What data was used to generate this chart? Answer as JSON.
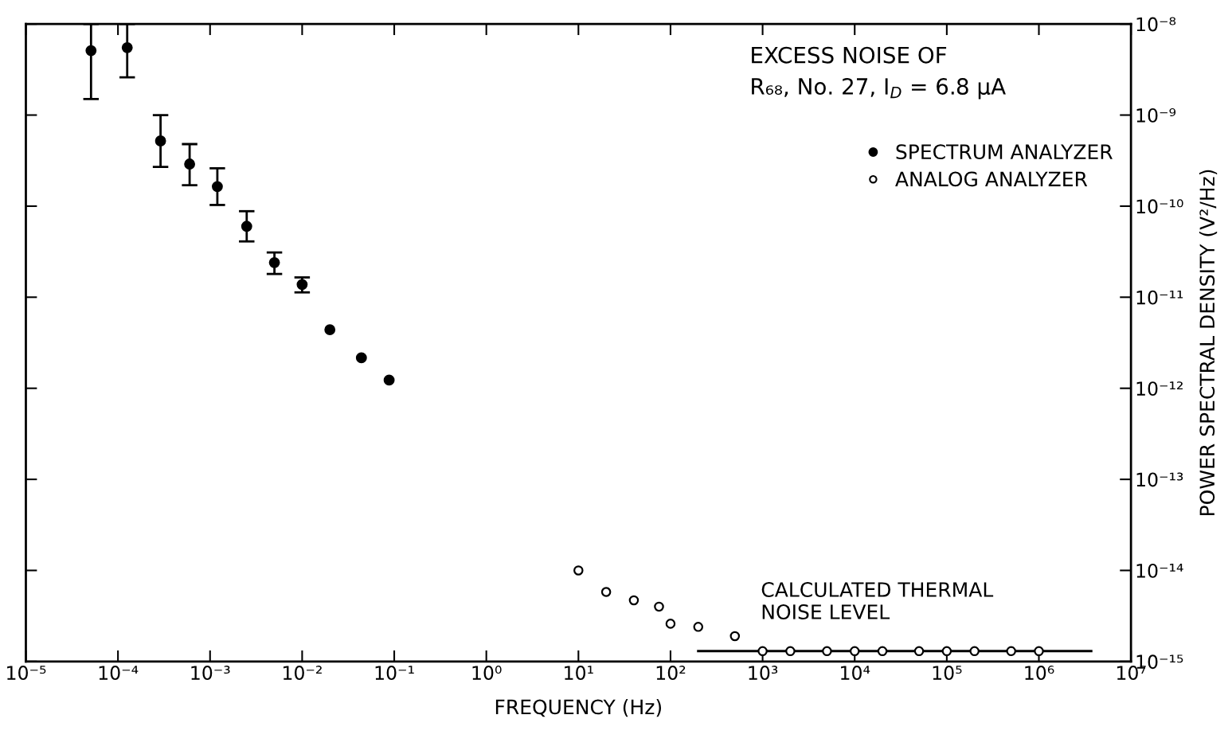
{
  "chart_data": {
    "type": "scatter",
    "title": "EXCESS NOISE OF\nR₆₈, No. 27, I$_{D}$ = 6.8 μA",
    "xlabel": "FREQUENCY (Hz)",
    "ylabel": "POWER SPECTRAL DENSITY (V²/Hz)",
    "log": "xy",
    "grid": false,
    "legend": "top right",
    "xlim": [
      1e-05,
      10000000.0
    ],
    "ylim": [
      1e-15,
      1e-08
    ],
    "xticks": [
      {
        "value": 1e-05,
        "label": "10⁻⁵"
      },
      {
        "value": 0.0001,
        "label": "10⁻⁴"
      },
      {
        "value": 0.001,
        "label": "10⁻³"
      },
      {
        "value": 0.01,
        "label": "10⁻²"
      },
      {
        "value": 0.1,
        "label": "10⁻¹"
      },
      {
        "value": 1,
        "label": "10⁰"
      },
      {
        "value": 10,
        "label": "10¹"
      },
      {
        "value": 100,
        "label": "10²"
      },
      {
        "value": 1000,
        "label": "10³"
      },
      {
        "value": 10000.0,
        "label": "10⁴"
      },
      {
        "value": 100000.0,
        "label": "10⁵"
      },
      {
        "value": 1000000.0,
        "label": "10⁶"
      },
      {
        "value": 10000000.0,
        "label": "10⁷"
      }
    ],
    "yticks": [
      {
        "value": 1e-15,
        "label": "10⁻¹⁵"
      },
      {
        "value": 1e-14,
        "label": "10⁻¹⁴"
      },
      {
        "value": 1e-13,
        "label": "10⁻¹³"
      },
      {
        "value": 1e-12,
        "label": "10⁻¹²"
      },
      {
        "value": 1e-11,
        "label": "10⁻¹¹"
      },
      {
        "value": 1e-10,
        "label": "10⁻¹⁰"
      },
      {
        "value": 1e-09,
        "label": "10⁻⁹"
      },
      {
        "value": 1e-08,
        "label": "10⁻⁸"
      }
    ],
    "series": [
      {
        "name": "SPECTRUM ANALYZER",
        "marker": "circle",
        "color": "#000000",
        "x": [
          5.1e-05,
          0.000126,
          0.00029,
          0.0006,
          0.0012,
          0.0025,
          0.005,
          0.01,
          0.02,
          0.044,
          0.088
        ],
        "values": [
          5.1e-09,
          5.5e-09,
          5.2e-10,
          2.9e-10,
          1.64e-10,
          6e-11,
          2.4e-11,
          1.38e-11,
          4.4e-12,
          2.16e-12,
          1.23e-12
        ],
        "errors": [
          [
            1.5e-09,
            1e-08
          ],
          [
            2.6e-09,
            1e-08
          ],
          [
            2.7e-10,
            1e-09
          ],
          [
            1.7e-10,
            4.8e-10
          ],
          [
            1.03e-10,
            2.6e-10
          ],
          [
            4.1e-11,
            8.8e-11
          ],
          [
            1.8e-11,
            3.1e-11
          ],
          [
            1.13e-11,
            1.65e-11
          ],
          null,
          null,
          null
        ]
      },
      {
        "name": "ANALOG ANALYZER",
        "marker": "circle-open",
        "color": "#000000",
        "x": [
          10,
          20,
          40,
          75,
          100,
          200,
          500,
          1000,
          2000,
          5000,
          10000.0,
          20000.0,
          50000.0,
          100000.0,
          200000.0,
          500000.0,
          1000000.0
        ],
        "values": [
          1e-14,
          5.8e-15,
          4.7e-15,
          4e-15,
          2.6e-15,
          2.4e-15,
          1.9e-15,
          1.3e-15,
          1.3e-15,
          1.3e-15,
          1.3e-15,
          1.3e-15,
          1.3e-15,
          1.3e-15,
          1.3e-15,
          1.3e-15,
          1.3e-15
        ]
      },
      {
        "type": "line",
        "marker": "none",
        "color": "#000000",
        "x": [
          200,
          3700000.0
        ],
        "values": [
          1.3e-15,
          1.3e-15
        ]
      }
    ],
    "annotations": [
      "CALCULATED THERMAL\nNOISE LEVEL"
    ]
  }
}
